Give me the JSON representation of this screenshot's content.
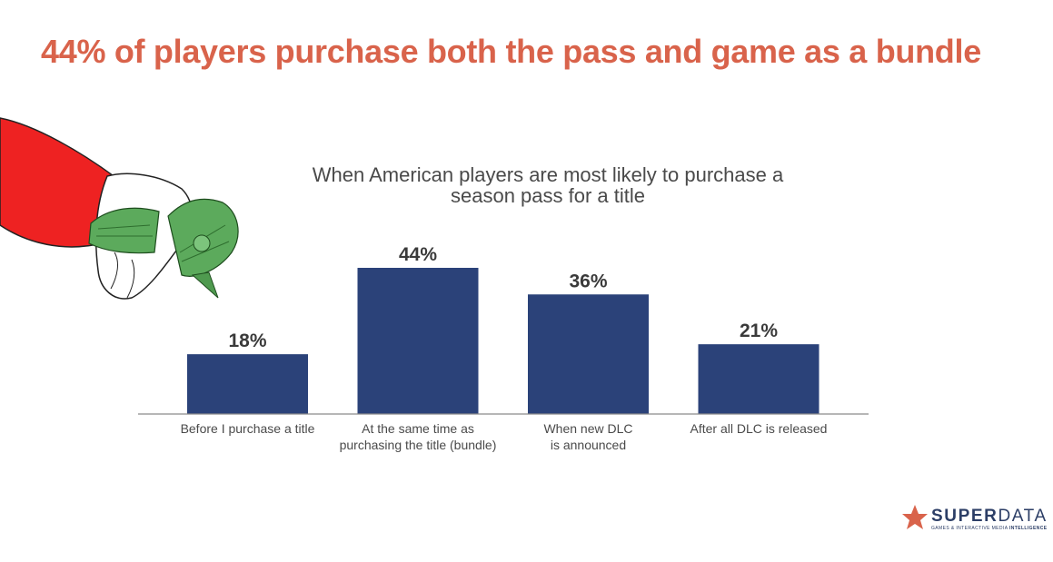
{
  "headline": "44% of players purchase both the pass and game as a bundle",
  "chart_data": {
    "type": "bar",
    "title_lines": [
      "When American players are most likely to purchase a",
      "season pass for a title"
    ],
    "categories": [
      [
        "Before I purchase a title"
      ],
      [
        "At the same time as",
        "purchasing the title (bundle)"
      ],
      [
        "When new DLC",
        "is announced"
      ],
      [
        "After all DLC is released"
      ]
    ],
    "values": [
      18,
      44,
      36,
      21
    ],
    "value_labels": [
      "18%",
      "44%",
      "36%",
      "21%"
    ],
    "ylim": [
      0,
      44
    ],
    "grid": false,
    "colors": {
      "bar": "#2b4279",
      "axis": "#8a8a8a",
      "value_text": "#3a3a3a",
      "category_text": "#4a4a4a"
    }
  },
  "logo": {
    "word_bold": "SUPER",
    "word_light": "DATA",
    "sub_a": "GAMES & INTERACTIVE MEDIA ",
    "sub_b": "INTELLIGENCE",
    "icon": "star-icon",
    "colors": {
      "star": "#d9634b",
      "text": "#2c3e66"
    }
  },
  "illustration": {
    "icon": "hand-clutching-money",
    "colors": {
      "sleeve": "#ee2222",
      "money": "#5caa5c"
    }
  }
}
